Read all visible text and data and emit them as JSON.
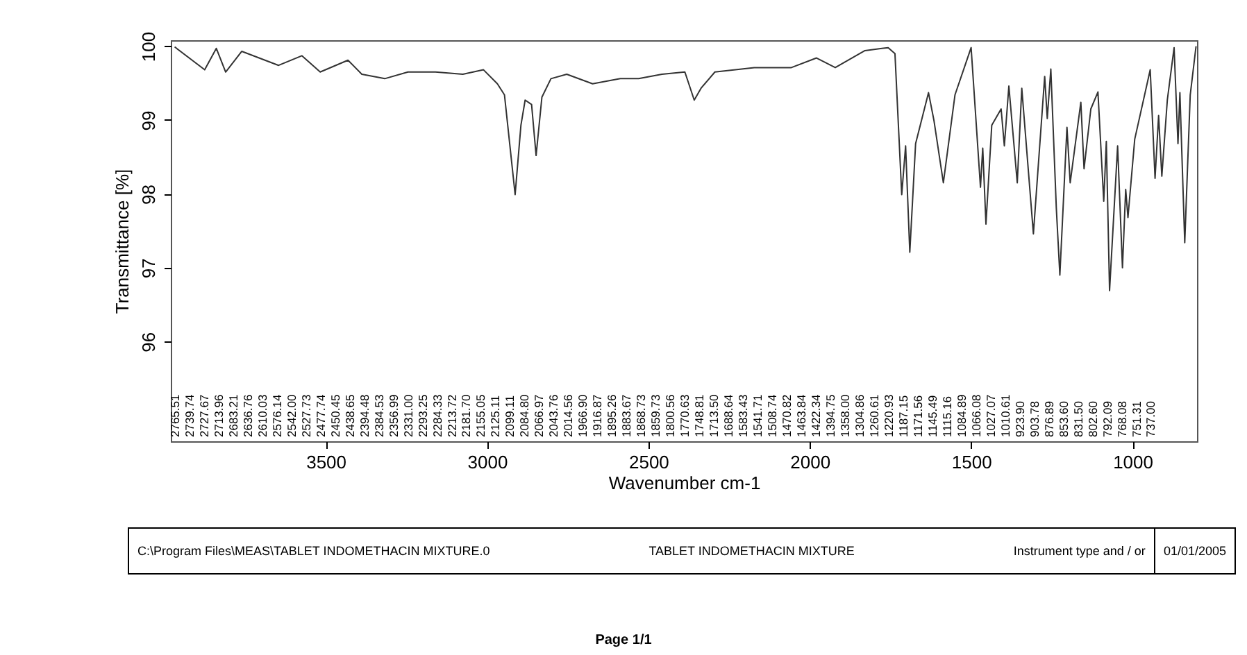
{
  "chart_data": [
    {
      "type": "line",
      "xlabel": "Wavenumber cm-1",
      "ylabel": "Transmittance [%]",
      "x": [
        3968,
        3875,
        3839,
        3810,
        3760,
        3646,
        3574,
        3517,
        3431,
        3388,
        3317,
        3245,
        3160,
        3075,
        3011,
        2968,
        2946,
        2913,
        2895,
        2882,
        2862,
        2848,
        2830,
        2802,
        2753,
        2673,
        2587,
        2530,
        2458,
        2387,
        2358,
        2337,
        2294,
        2172,
        2057,
        1979,
        1921,
        1829,
        1757,
        1736,
        1715,
        1703,
        1690,
        1672,
        1632,
        1615,
        1586,
        1550,
        1500,
        1471,
        1464,
        1454,
        1436,
        1407,
        1397,
        1383,
        1357,
        1343,
        1307,
        1272,
        1264,
        1253,
        1236,
        1225,
        1203,
        1193,
        1160,
        1150,
        1129,
        1107,
        1089,
        1081,
        1071,
        1046,
        1031,
        1021,
        1014,
        993,
        945,
        930,
        919,
        909,
        892,
        871,
        859,
        853,
        838,
        821,
        803
      ],
      "series": [
        {
          "color": "#333333",
          "values": [
            99.99,
            99.68,
            99.97,
            99.65,
            99.93,
            99.74,
            99.87,
            99.65,
            99.81,
            99.62,
            99.56,
            99.65,
            99.65,
            99.62,
            99.68,
            99.49,
            99.34,
            97.99,
            98.93,
            99.27,
            99.21,
            98.52,
            99.31,
            99.56,
            99.62,
            99.49,
            99.56,
            99.56,
            99.62,
            99.65,
            99.27,
            99.43,
            99.65,
            99.71,
            99.71,
            99.84,
            99.71,
            99.94,
            99.98,
            99.9,
            97.99,
            98.65,
            97.21,
            98.68,
            99.37,
            98.99,
            98.15,
            99.34,
            99.98,
            98.09,
            98.62,
            97.59,
            98.93,
            99.15,
            98.65,
            99.46,
            98.15,
            99.43,
            97.46,
            99.59,
            99.02,
            99.69,
            97.81,
            96.9,
            98.9,
            98.15,
            99.24,
            98.34,
            99.15,
            99.38,
            97.9,
            98.71,
            96.69,
            98.65,
            97.0,
            98.06,
            97.68,
            98.74,
            99.68,
            98.21,
            99.06,
            98.24,
            99.27,
            99.98,
            98.68,
            99.37,
            97.34,
            99.34,
            100.0
          ]
        }
      ],
      "xlim": [
        3980,
        800
      ],
      "xticks": [
        3500,
        3000,
        2500,
        2000,
        1500,
        1000
      ],
      "ylim": [
        94.65,
        100.08
      ],
      "yticks": [
        96,
        97,
        98,
        99,
        100
      ],
      "grid": false,
      "annotations": [
        "2765.51",
        "2739.74",
        "2727.67",
        "2713.96",
        "2683.21",
        "2636.76",
        "2610.03",
        "2576.14",
        "2542.00",
        "2527.73",
        "2477.74",
        "2450.45",
        "2438.65",
        "2394.48",
        "2384.53",
        "2356.99",
        "2331.00",
        "2293.25",
        "2284.33",
        "2213.72",
        "2181.70",
        "2155.05",
        "2125.11",
        "2099.11",
        "2084.80",
        "2066.97",
        "2043.76",
        "2014.56",
        "1966.90",
        "1916.87",
        "1895.26",
        "1883.67",
        "1868.73",
        "1859.73",
        "1800.56",
        "1770.63",
        "1748.81",
        "1713.50",
        "1688.64",
        "1583.43",
        "1541.71",
        "1508.74",
        "1470.82",
        "1463.84",
        "1422.34",
        "1394.75",
        "1358.00",
        "1304.86",
        "1260.61",
        "1220.93",
        "1187.15",
        "1171.56",
        "1145.49",
        "1115.16",
        "1084.89",
        "1066.08",
        "1027.07",
        "1010.61",
        "923.90",
        "903.78",
        "876.89",
        "853.60",
        "831.50",
        "802.60",
        "792.09",
        "768.08",
        "751.31",
        "737.00"
      ]
    },
    {
      "type": "other",
      "annotations": [
        "C:\\Program Files\\MEAS\\TABLET INDOMETHACIN MIXTURE.0",
        "TABLET INDOMETHACIN MIXTURE",
        "Instrument type and / or",
        "01/01/2005",
        "Page 1/1"
      ]
    }
  ]
}
